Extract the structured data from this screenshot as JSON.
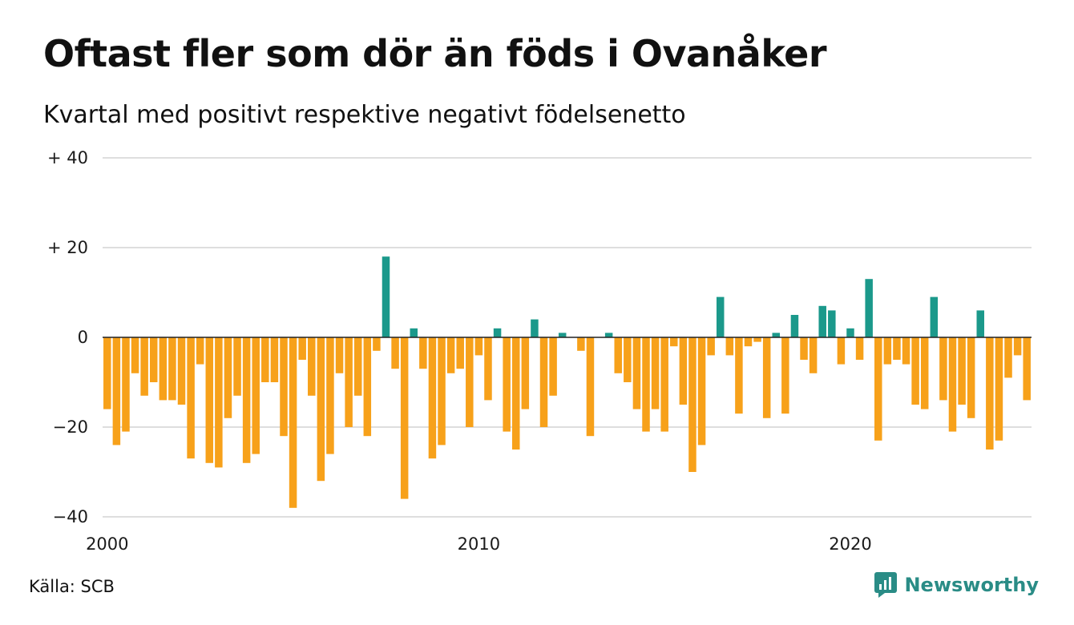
{
  "title": "Oftast fler som dör än föds i Ovanåker",
  "subtitle": "Kvartal med positivt respektive negativt födelsenetto",
  "source": "Källa: SCB",
  "brand": {
    "name": "Newsworthy",
    "icon": "newsworthy-logo-icon"
  },
  "colors": {
    "positive": "#1b998b",
    "negative": "#f7a11a",
    "grid": "#dedede",
    "baseline": "#222222",
    "brand": "#2a8c86"
  },
  "chart_data": {
    "type": "bar",
    "title": "Oftast fler som dör än föds i Ovanåker",
    "subtitle": "Kvartal med positivt respektive negativt födelsenetto",
    "xlabel": "",
    "ylabel": "",
    "x_start": "2000 Q1",
    "x_ticks": [
      "2000",
      "2010",
      "2020"
    ],
    "y_ticks": [
      {
        "value": 40,
        "label": "+ 40"
      },
      {
        "value": 20,
        "label": "+ 20"
      },
      {
        "value": 0,
        "label": "0"
      },
      {
        "value": -20,
        "label": "−20"
      },
      {
        "value": -40,
        "label": "−40"
      }
    ],
    "ylim": [
      -40,
      40
    ],
    "grid": true,
    "values": [
      -16,
      -24,
      -21,
      -8,
      -13,
      -10,
      -14,
      -14,
      -15,
      -27,
      -6,
      -28,
      -29,
      -18,
      -13,
      -28,
      -26,
      -10,
      -10,
      -22,
      -38,
      -5,
      -13,
      -32,
      -26,
      -8,
      -20,
      -13,
      -22,
      -3,
      18,
      -7,
      -36,
      2,
      -7,
      -27,
      -24,
      -8,
      -7,
      -20,
      -4,
      -14,
      2,
      -21,
      -25,
      -16,
      4,
      -20,
      -13,
      1,
      0,
      -3,
      -22,
      0,
      1,
      -8,
      -10,
      -16,
      -21,
      -16,
      -21,
      -2,
      -15,
      -30,
      -24,
      -4,
      9,
      -4,
      -17,
      -2,
      -1,
      -18,
      1,
      -17,
      5,
      -5,
      -8,
      7,
      6,
      -6,
      2,
      -5,
      13,
      -23,
      -6,
      -5,
      -6,
      -15,
      -16,
      9,
      -14,
      -21,
      -15,
      -18,
      6,
      -25,
      -23,
      -9,
      -4,
      -14
    ]
  }
}
